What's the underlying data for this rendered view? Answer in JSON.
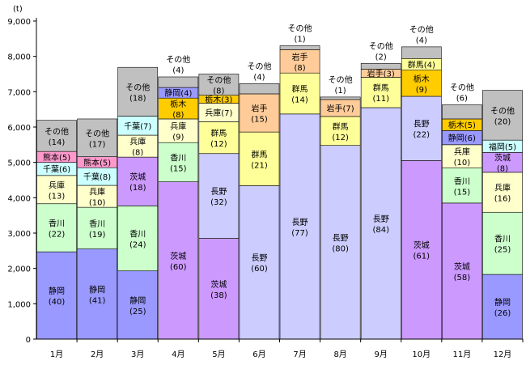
{
  "chart_data": {
    "type": "bar",
    "stacked": true,
    "unit_label": "(t)",
    "ylim": [
      0,
      9000
    ],
    "yticks": [
      "0",
      "1,000",
      "2,000",
      "3,000",
      "4,000",
      "5,000",
      "6,000",
      "7,000",
      "8,000",
      "9,000"
    ],
    "ytick_values": [
      0,
      1000,
      2000,
      3000,
      4000,
      5000,
      6000,
      7000,
      8000,
      9000
    ],
    "grid": false,
    "colors": {
      "静岡": "#9999ff",
      "香川": "#ccffcc",
      "兵庫": "#ffffcc",
      "千葉": "#ccffff",
      "熊本": "#ff99cc",
      "茨城": "#cc99ff",
      "長野": "#ccccff",
      "栃木": "#ffcc00",
      "群馬": "#ffff99",
      "岩手": "#ffcc99",
      "福岡": "#ccffff",
      "その他": "#c0c0c0"
    },
    "months": [
      {
        "label": "1月",
        "segments": [
          {
            "name": "静岡",
            "pct": "(40)",
            "value": 2470
          },
          {
            "name": "香川",
            "pct": "(22)",
            "value": 1360
          },
          {
            "name": "兵庫",
            "pct": "(13)",
            "value": 800
          },
          {
            "name": "千葉",
            "pct": "(6)",
            "value": 370
          },
          {
            "name": "熊本",
            "pct": "(5)",
            "value": 310
          },
          {
            "name": "その他",
            "pct": "(14)",
            "value": 880
          }
        ]
      },
      {
        "label": "2月",
        "segments": [
          {
            "name": "静岡",
            "pct": "(41)",
            "value": 2550
          },
          {
            "name": "香川",
            "pct": "(19)",
            "value": 1180
          },
          {
            "name": "兵庫",
            "pct": "(10)",
            "value": 620
          },
          {
            "name": "千葉",
            "pct": "(8)",
            "value": 500
          },
          {
            "name": "熊本",
            "pct": "(5)",
            "value": 310
          },
          {
            "name": "その他",
            "pct": "(17)",
            "value": 1070
          }
        ]
      },
      {
        "label": "3月",
        "segments": [
          {
            "name": "静岡",
            "pct": "(25)",
            "value": 1930
          },
          {
            "name": "香川",
            "pct": "(24)",
            "value": 1840
          },
          {
            "name": "茨城",
            "pct": "(18)",
            "value": 1380
          },
          {
            "name": "兵庫",
            "pct": "(8)",
            "value": 620
          },
          {
            "name": "千葉",
            "pct": "(7)",
            "value": 540
          },
          {
            "name": "その他",
            "pct": "(18)",
            "value": 1380
          }
        ]
      },
      {
        "label": "4月",
        "segments": [
          {
            "name": "茨城",
            "pct": "(60)",
            "value": 4450
          },
          {
            "name": "香川",
            "pct": "(15)",
            "value": 1110
          },
          {
            "name": "兵庫",
            "pct": "(9)",
            "value": 670
          },
          {
            "name": "栃木",
            "pct": "(8)",
            "value": 590
          },
          {
            "name": "静岡",
            "pct": "(4)",
            "value": 300
          },
          {
            "name": "その他",
            "pct": "(4)",
            "value": 300
          }
        ],
        "outside_label": "その他"
      },
      {
        "label": "5月",
        "segments": [
          {
            "name": "茨城",
            "pct": "(38)",
            "value": 2850
          },
          {
            "name": "長野",
            "pct": "(32)",
            "value": 2400
          },
          {
            "name": "群馬",
            "pct": "(12)",
            "value": 900
          },
          {
            "name": "兵庫",
            "pct": "(7)",
            "value": 525
          },
          {
            "name": "栃木",
            "pct": "(3)",
            "value": 225
          },
          {
            "name": "その他",
            "pct": "(8)",
            "value": 600
          }
        ]
      },
      {
        "label": "6月",
        "segments": [
          {
            "name": "長野",
            "pct": "(60)",
            "value": 4340
          },
          {
            "name": "群馬",
            "pct": "(21)",
            "value": 1520
          },
          {
            "name": "岩手",
            "pct": "(15)",
            "value": 1080
          },
          {
            "name": "その他",
            "pct": "(4)",
            "value": 290
          }
        ],
        "outside_label": "その他"
      },
      {
        "label": "7月",
        "segments": [
          {
            "name": "長野",
            "pct": "(77)",
            "value": 6370
          },
          {
            "name": "群馬",
            "pct": "(14)",
            "value": 1160
          },
          {
            "name": "岩手",
            "pct": "(8)",
            "value": 660
          },
          {
            "name": "その他",
            "pct": "(1)",
            "value": 110
          }
        ],
        "outside_label": "その他"
      },
      {
        "label": "8月",
        "segments": [
          {
            "name": "長野",
            "pct": "(80)",
            "value": 5480
          },
          {
            "name": "群馬",
            "pct": "(12)",
            "value": 820
          },
          {
            "name": "岩手",
            "pct": "(7)",
            "value": 480
          },
          {
            "name": "その他",
            "pct": "(1)",
            "value": 70
          }
        ],
        "outside_label": "その他"
      },
      {
        "label": "9月",
        "segments": [
          {
            "name": "長野",
            "pct": "(84)",
            "value": 6550
          },
          {
            "name": "群馬",
            "pct": "(11)",
            "value": 860
          },
          {
            "name": "岩手",
            "pct": "(3)",
            "value": 230
          },
          {
            "name": "その他",
            "pct": "(2)",
            "value": 160
          }
        ],
        "outside_label": "その他"
      },
      {
        "label": "10月",
        "segments": [
          {
            "name": "茨城",
            "pct": "(61)",
            "value": 5050
          },
          {
            "name": "長野",
            "pct": "(22)",
            "value": 1820
          },
          {
            "name": "栃木",
            "pct": "(9)",
            "value": 740
          },
          {
            "name": "群馬",
            "pct": "(4)",
            "value": 330
          },
          {
            "name": "その他",
            "pct": "(4)",
            "value": 330
          }
        ],
        "outside_label": "その他"
      },
      {
        "label": "11月",
        "segments": [
          {
            "name": "茨城",
            "pct": "(58)",
            "value": 3850
          },
          {
            "name": "香川",
            "pct": "(15)",
            "value": 990
          },
          {
            "name": "兵庫",
            "pct": "(10)",
            "value": 660
          },
          {
            "name": "静岡",
            "pct": "(6)",
            "value": 400
          },
          {
            "name": "栃木",
            "pct": "(5)",
            "value": 330
          },
          {
            "name": "その他",
            "pct": "(6)",
            "value": 400
          }
        ],
        "outside_label": "その他"
      },
      {
        "label": "12月",
        "segments": [
          {
            "name": "静岡",
            "pct": "(26)",
            "value": 1830
          },
          {
            "name": "香川",
            "pct": "(25)",
            "value": 1760
          },
          {
            "name": "兵庫",
            "pct": "(16)",
            "value": 1130
          },
          {
            "name": "茨城",
            "pct": "(8)",
            "value": 560
          },
          {
            "name": "福岡",
            "pct": "(5)",
            "value": 350
          },
          {
            "name": "その他",
            "pct": "(20)",
            "value": 1410
          }
        ]
      }
    ]
  }
}
